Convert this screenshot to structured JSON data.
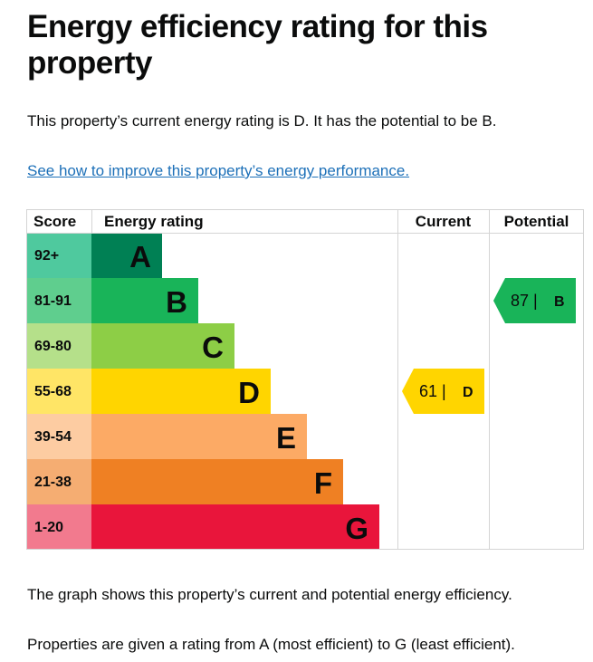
{
  "page": {
    "title": "Energy efficiency rating for this property",
    "summary": "This property’s current energy rating is D. It has the potential to be B.",
    "improve_link": "See how to improve this property’s energy performance.",
    "footer_1": "The graph shows this property’s current and potential energy efficiency.",
    "footer_2": "Properties are given a rating from A (most efficient) to G (least efficient)."
  },
  "chart_data": {
    "type": "table",
    "headers": {
      "score": "Score",
      "rating": "Energy rating",
      "current": "Current",
      "potential": "Potential"
    },
    "bands": [
      {
        "letter": "A",
        "score": "92+",
        "bar_color": "#008054",
        "score_color": "#4fc99e"
      },
      {
        "letter": "B",
        "score": "81-91",
        "bar_color": "#19b459",
        "score_color": "#5fce8e"
      },
      {
        "letter": "C",
        "score": "69-80",
        "bar_color": "#8dce46",
        "score_color": "#b5e08a"
      },
      {
        "letter": "D",
        "score": "55-68",
        "bar_color": "#ffd500",
        "score_color": "#ffe566"
      },
      {
        "letter": "E",
        "score": "39-54",
        "bar_color": "#fcaa65",
        "score_color": "#fdcca2"
      },
      {
        "letter": "F",
        "score": "21-38",
        "bar_color": "#ef8023",
        "score_color": "#f5ad72"
      },
      {
        "letter": "G",
        "score": "1-20",
        "bar_color": "#e9153b",
        "score_color": "#f27a8e"
      }
    ],
    "current": {
      "value": 61,
      "letter": "D",
      "label": "61 |",
      "color": "#ffd500"
    },
    "potential": {
      "value": 87,
      "letter": "B",
      "label": "87 |",
      "color": "#19b459"
    }
  }
}
